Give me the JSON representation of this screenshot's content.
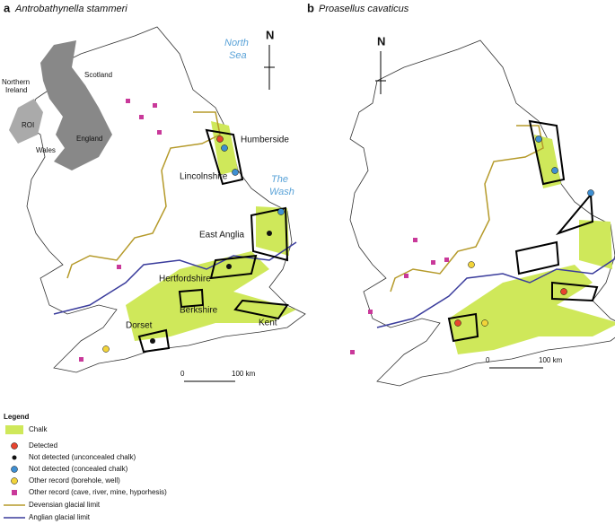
{
  "panels": [
    {
      "letter": "a",
      "species": "Antrobathynella stammeri",
      "regions": [
        "Humberside",
        "Lincolnshire",
        "East Anglia",
        "Hertfordshire",
        "Berkshire",
        "Kent",
        "Dorset"
      ],
      "seas": [
        [
          "North",
          "Sea"
        ],
        [
          "The",
          "Wash"
        ]
      ],
      "compass": "N",
      "scale": [
        "0",
        "100 km"
      ]
    },
    {
      "letter": "b",
      "species": "Proasellus cavaticus",
      "compass": "N",
      "scale": [
        "0",
        "100 km"
      ]
    }
  ],
  "inset": [
    [
      "Scotland"
    ],
    [
      "Northern",
      "Ireland"
    ],
    [
      "ROI"
    ],
    [
      "England"
    ],
    [
      "Wales"
    ]
  ],
  "legend": {
    "title": "Legend",
    "items": [
      "Chalk",
      "Detected",
      "Not detected (unconcealed chalk)",
      "Not detected (concealed chalk)",
      "Other record (borehole, well)",
      "Other record (cave, river, mine, hyporhesis)",
      "Devensian glacial limit",
      "Anglian glacial limit"
    ]
  }
}
